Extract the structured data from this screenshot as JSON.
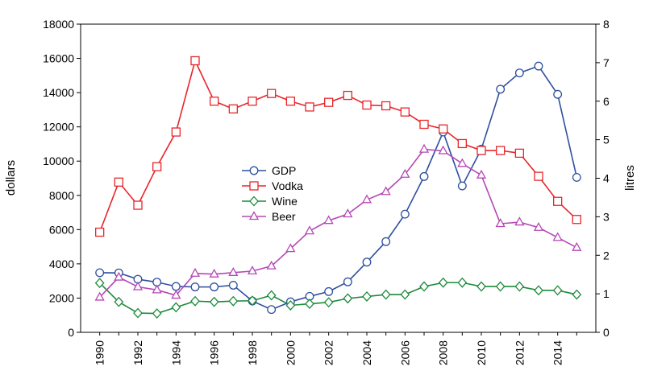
{
  "chart_data": {
    "type": "line",
    "title": "",
    "xlabel": "",
    "ylabel_left": "dollars",
    "ylabel_right": "litres",
    "x": [
      1990,
      1991,
      1992,
      1993,
      1994,
      1995,
      1996,
      1997,
      1998,
      1999,
      2000,
      2001,
      2002,
      2003,
      2004,
      2005,
      2006,
      2007,
      2008,
      2009,
      2010,
      2011,
      2012,
      2013,
      2014,
      2015
    ],
    "x_ticks": [
      1990,
      1992,
      1994,
      1996,
      1998,
      2000,
      2002,
      2004,
      2006,
      2008,
      2010,
      2012,
      2014
    ],
    "xlim": [
      1989,
      2016
    ],
    "y_left_lim": [
      0,
      18000
    ],
    "y_left_ticks": [
      0,
      2000,
      4000,
      6000,
      8000,
      10000,
      12000,
      14000,
      16000,
      18000
    ],
    "y_right_lim": [
      0,
      8
    ],
    "y_right_ticks": [
      0,
      1,
      2,
      3,
      4,
      5,
      6,
      7,
      8
    ],
    "grid": false,
    "legend_position": "center-left",
    "series": [
      {
        "name": "GDP",
        "axis": "left",
        "marker": "circle",
        "color": "#2f4f9f",
        "values": [
          3480,
          3470,
          3100,
          2930,
          2680,
          2650,
          2650,
          2750,
          1830,
          1330,
          1780,
          2100,
          2380,
          2950,
          4100,
          5300,
          6900,
          9100,
          11700,
          8550,
          10700,
          14200,
          15150,
          15550,
          13900,
          9050
        ]
      },
      {
        "name": "Vodka",
        "axis": "right",
        "marker": "square",
        "color": "#e8262b",
        "values": [
          2.6,
          3.9,
          3.3,
          4.3,
          5.2,
          7.05,
          6.0,
          5.8,
          6.0,
          6.2,
          6.0,
          5.85,
          5.97,
          6.15,
          5.9,
          5.88,
          5.72,
          5.4,
          5.28,
          4.9,
          4.72,
          4.72,
          4.65,
          4.05,
          3.4,
          2.93
        ]
      },
      {
        "name": "Wine",
        "axis": "right",
        "marker": "diamond",
        "color": "#1e8a3c",
        "values": [
          1.28,
          0.79,
          0.5,
          0.49,
          0.65,
          0.81,
          0.79,
          0.81,
          0.82,
          0.96,
          0.7,
          0.74,
          0.78,
          0.88,
          0.93,
          0.98,
          0.98,
          1.19,
          1.29,
          1.29,
          1.19,
          1.19,
          1.19,
          1.09,
          1.09,
          0.98
        ]
      },
      {
        "name": "Beer",
        "axis": "right",
        "marker": "triangle",
        "color": "#b548b5",
        "values": [
          0.91,
          1.43,
          1.18,
          1.1,
          0.96,
          1.53,
          1.51,
          1.55,
          1.59,
          1.72,
          2.17,
          2.63,
          2.9,
          3.07,
          3.44,
          3.65,
          4.1,
          4.75,
          4.71,
          4.38,
          4.08,
          2.82,
          2.86,
          2.72,
          2.46,
          2.2
        ]
      }
    ]
  }
}
